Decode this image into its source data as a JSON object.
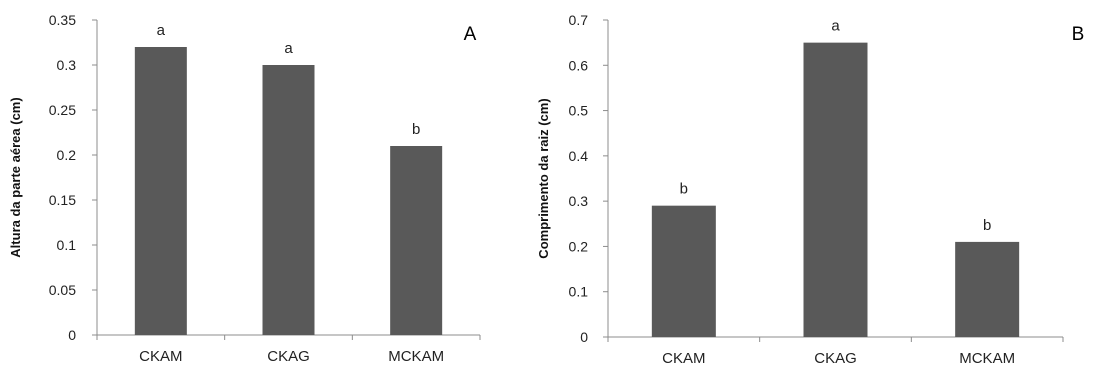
{
  "chart_data": [
    {
      "type": "bar",
      "panel_label": "A",
      "title": "",
      "xlabel": "",
      "ylabel": "Altura da parte aérea (cm)",
      "categories": [
        "CKAM",
        "CKAG",
        "MCKAM"
      ],
      "values": [
        0.32,
        0.3,
        0.21
      ],
      "significance_letters": [
        "a",
        "a",
        "b"
      ],
      "ylim": [
        0,
        0.35
      ],
      "yticks": [
        0,
        0.05,
        0.1,
        0.15,
        0.2,
        0.25,
        0.3,
        0.35
      ],
      "ytick_labels": [
        "0",
        "0.05",
        "0.1",
        "0.15",
        "0.2",
        "0.25",
        "0.3",
        "0.35"
      ],
      "grid": false,
      "bar_color": "#595959"
    },
    {
      "type": "bar",
      "panel_label": "B",
      "title": "",
      "xlabel": "",
      "ylabel": "Comprimento da raiz (cm)",
      "categories": [
        "CKAM",
        "CKAG",
        "MCKAM"
      ],
      "values": [
        0.29,
        0.65,
        0.21
      ],
      "significance_letters": [
        "b",
        "a",
        "b"
      ],
      "ylim": [
        0,
        0.7
      ],
      "yticks": [
        0,
        0.1,
        0.2,
        0.3,
        0.4,
        0.5,
        0.6,
        0.7
      ],
      "ytick_labels": [
        "0",
        "0.1",
        "0.2",
        "0.3",
        "0.4",
        "0.5",
        "0.6",
        "0.7"
      ],
      "grid": false,
      "bar_color": "#595959"
    }
  ]
}
